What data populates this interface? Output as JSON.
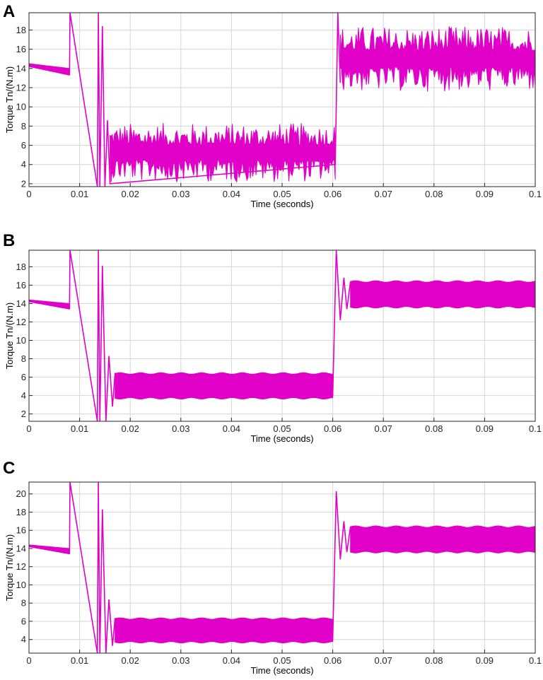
{
  "colors": {
    "series": "#e000c8",
    "grid": "#d6d6d6",
    "axis": "#262626"
  },
  "chart_data": [
    {
      "panel_label": "A",
      "type": "line",
      "xlabel": "Time (seconds)",
      "ylabel": "Torque Tn/(N.m)",
      "xlim": [
        0,
        0.1
      ],
      "ylim": [
        1.7,
        19.8
      ],
      "xticks": [
        "0",
        "0.01",
        "0.02",
        "0.03",
        "0.04",
        "0.05",
        "0.06",
        "0.07",
        "0.08",
        "0.09",
        "0.1"
      ],
      "yticks": [
        "2",
        "4",
        "6",
        "8",
        "10",
        "12",
        "14",
        "16",
        "18"
      ],
      "grid": true,
      "series": [
        {
          "segments": [
            {
              "x": [
                0,
                0.008
              ],
              "upper": [
                14.5,
                14.0
              ],
              "lower": [
                14.2,
                13.3
              ]
            },
            {
              "x": [
                0.016,
                0.0605
              ],
              "upper": [
                7.5,
                7.5
              ],
              "lower": [
                3.0,
                3.0
              ]
            },
            {
              "x": [
                0.0615,
                0.1
              ],
              "upper": [
                17.5,
                17.5
              ],
              "lower": [
                12.5,
                12.5
              ]
            }
          ],
          "spikes": [
            [
              0.008,
              13.3
            ],
            [
              0.0081,
              19.8
            ],
            [
              0.0135,
              1.7
            ],
            [
              0.0137,
              19.8
            ],
            [
              0.014,
              1.7
            ],
            [
              0.0145,
              18.4
            ],
            [
              0.015,
              1.7
            ],
            [
              0.0155,
              8.6
            ],
            [
              0.016,
              2.0
            ],
            [
              0.0605,
              4.0
            ],
            [
              0.061,
              19.8
            ],
            [
              0.0615,
              12.5
            ]
          ],
          "noise": "high"
        }
      ]
    },
    {
      "panel_label": "B",
      "type": "line",
      "xlabel": "Time (seconds)",
      "ylabel": "Torque Tn/(N.m)",
      "xlim": [
        0,
        0.1
      ],
      "ylim": [
        1.2,
        19.8
      ],
      "xticks": [
        "0",
        "0.01",
        "0.02",
        "0.03",
        "0.04",
        "0.05",
        "0.06",
        "0.07",
        "0.08",
        "0.09",
        "0.1"
      ],
      "yticks": [
        "2",
        "4",
        "6",
        "8",
        "10",
        "12",
        "14",
        "16",
        "18"
      ],
      "grid": true,
      "series": [
        {
          "segments": [
            {
              "x": [
                0,
                0.008
              ],
              "upper": [
                14.4,
                14.0
              ],
              "lower": [
                14.2,
                13.4
              ]
            },
            {
              "x": [
                0.017,
                0.06
              ],
              "upper": [
                6.4,
                6.4
              ],
              "lower": [
                3.7,
                3.7
              ]
            },
            {
              "x": [
                0.0635,
                0.1
              ],
              "upper": [
                16.4,
                16.4
              ],
              "lower": [
                13.6,
                13.6
              ]
            }
          ],
          "spikes": [
            [
              0.008,
              13.4
            ],
            [
              0.0081,
              19.8
            ],
            [
              0.0135,
              1.2
            ],
            [
              0.0137,
              19.8
            ],
            [
              0.014,
              1.2
            ],
            [
              0.0145,
              18.1
            ],
            [
              0.0152,
              1.2
            ],
            [
              0.0158,
              8.3
            ],
            [
              0.0165,
              2.8
            ],
            [
              0.017,
              6.4
            ],
            [
              0.06,
              4.0
            ],
            [
              0.0607,
              19.8
            ],
            [
              0.0615,
              12.2
            ],
            [
              0.0622,
              16.8
            ],
            [
              0.0628,
              13.4
            ],
            [
              0.0635,
              16.4
            ]
          ],
          "noise": "low"
        }
      ]
    },
    {
      "panel_label": "C",
      "type": "line",
      "xlabel": "Time (seconds)",
      "ylabel": "Torque Tn/(N.m)",
      "xlim": [
        0,
        0.1
      ],
      "ylim": [
        2.5,
        21.3
      ],
      "xticks": [
        "0",
        "0.01",
        "0.02",
        "0.03",
        "0.04",
        "0.05",
        "0.06",
        "0.07",
        "0.08",
        "0.09",
        "0.1"
      ],
      "yticks": [
        "4",
        "6",
        "8",
        "10",
        "12",
        "14",
        "16",
        "18",
        "20"
      ],
      "grid": true,
      "series": [
        {
          "segments": [
            {
              "x": [
                0,
                0.008
              ],
              "upper": [
                14.4,
                14.0
              ],
              "lower": [
                14.2,
                13.4
              ]
            },
            {
              "x": [
                0.017,
                0.06
              ],
              "upper": [
                6.3,
                6.3
              ],
              "lower": [
                3.7,
                3.7
              ]
            },
            {
              "x": [
                0.0635,
                0.1
              ],
              "upper": [
                16.4,
                16.4
              ],
              "lower": [
                13.6,
                13.6
              ]
            }
          ],
          "spikes": [
            [
              0.008,
              13.4
            ],
            [
              0.0081,
              21.3
            ],
            [
              0.0135,
              2.5
            ],
            [
              0.0137,
              21.3
            ],
            [
              0.014,
              2.5
            ],
            [
              0.0145,
              18.3
            ],
            [
              0.0152,
              2.5
            ],
            [
              0.0158,
              8.4
            ],
            [
              0.0165,
              3.3
            ],
            [
              0.017,
              6.3
            ],
            [
              0.06,
              4.0
            ],
            [
              0.0607,
              20.3
            ],
            [
              0.0615,
              12.8
            ],
            [
              0.0622,
              17.0
            ],
            [
              0.0628,
              13.6
            ],
            [
              0.0635,
              16.4
            ]
          ],
          "noise": "low"
        }
      ]
    }
  ]
}
